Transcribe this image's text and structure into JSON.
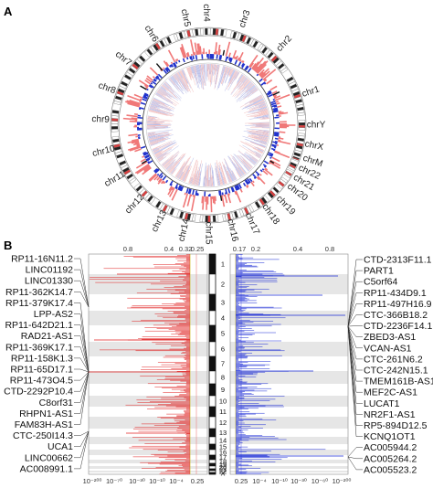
{
  "panels": {
    "a": "A",
    "b": "B"
  },
  "chart_data": [
    {
      "type": "circos",
      "panel": "A",
      "chromosomes": [
        "chr1",
        "chr2",
        "chr3",
        "chr4",
        "chr5",
        "chr6",
        "chr7",
        "chr8",
        "chr9",
        "chr10",
        "chr11",
        "chr12",
        "chr13",
        "chr14",
        "chr15",
        "chr16",
        "chr17",
        "chr18",
        "chr19",
        "chr20",
        "chr21",
        "chr22",
        "chrX",
        "chrY",
        "chrM"
      ],
      "chromosome_labels": [
        "chr1",
        "chr2",
        "chr3",
        "chr4",
        "chr5",
        "chr6",
        "chr7",
        "chr8",
        "chr9",
        "chr10",
        "chr11",
        "chr12",
        "chr13",
        "chr14",
        "chr15",
        "chr16",
        "chr17",
        "chr18",
        "chr19",
        "chr20",
        "chr21",
        "chr22",
        "chrX",
        "chrY",
        "chrM"
      ],
      "series_colors": {
        "up": "#f07878",
        "down": "#2233cc"
      }
    },
    {
      "type": "bar",
      "panel": "B",
      "left_genes": [
        "RP11-16N11.2",
        "LINC01192",
        "LINC01330",
        "RP11-362K14.7",
        "RP11-379K17.4",
        "LPP-AS2",
        "RP11-642D21.1",
        "RAD21-AS1",
        "RP11-369K17.1",
        "RP11-158K1.3",
        "RP11-65D17.1",
        "RP11-473O4.5",
        "CTD-2292P10.4",
        "C8orf31",
        "RHPN1-AS1",
        "FAM83H-AS1",
        "CTC-250I14.3",
        "UCA1",
        "LINC00662",
        "AC008991.1"
      ],
      "right_genes": [
        "CTD-2313F11.1",
        "PART1",
        "C5orf64",
        "RP11-434D9.1",
        "RP11-497H16.9",
        "CTC-366B18.2",
        "CTD-2236F14.1",
        "ZBED3-AS1",
        "VCAN-AS1",
        "CTC-261N6.2",
        "CTC-242N15.1",
        "TMEM161B-AS1",
        "MEF2C-AS1",
        "LUCAT1",
        "NR2F1-AS1",
        "RP5-894D12.5",
        "KCNQ1OT1",
        "AC005944.2",
        "AC005264.2",
        "AC005523.2"
      ],
      "ideogram_labels": [
        "1",
        "2",
        "3",
        "4",
        "5",
        "6",
        "7",
        "8",
        "9",
        "10",
        "11",
        "12",
        "13",
        "14",
        "15",
        "16",
        "17",
        "18",
        "19",
        "20",
        "21",
        "22",
        "X"
      ],
      "left_top_ticks": [
        "0.8",
        "0.4",
        "0.32",
        "0.25"
      ],
      "right_top_ticks": [
        "0.17",
        "0.2",
        "0.4",
        "0.8"
      ],
      "left_bottom_ticks": [
        "10⁻²⁰⁰",
        "10⁻⁷⁰",
        "10⁻³⁰",
        "10⁻¹⁰",
        "10⁻⁴",
        "0.25"
      ],
      "right_bottom_ticks": [
        "0.25",
        "10⁻⁴",
        "10⁻¹⁰",
        "10⁻³⁰",
        "10⁻⁶⁰",
        "10⁻²⁰⁰"
      ],
      "series_colors": {
        "left": "#e02020",
        "right": "#1a2bd6"
      }
    }
  ]
}
